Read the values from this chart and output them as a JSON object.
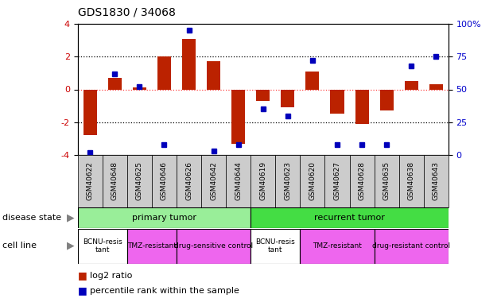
{
  "title": "GDS1830 / 34068",
  "samples": [
    "GSM40622",
    "GSM40648",
    "GSM40625",
    "GSM40646",
    "GSM40626",
    "GSM40642",
    "GSM40644",
    "GSM40619",
    "GSM40623",
    "GSM40620",
    "GSM40627",
    "GSM40628",
    "GSM40635",
    "GSM40638",
    "GSM40643"
  ],
  "log2_ratio": [
    -2.8,
    0.7,
    0.1,
    2.0,
    3.1,
    1.7,
    -3.3,
    -0.7,
    -1.1,
    1.1,
    -1.5,
    -2.1,
    -1.3,
    0.5,
    0.3
  ],
  "percentile_rank": [
    2,
    62,
    52,
    8,
    95,
    3,
    8,
    35,
    30,
    72,
    8,
    8,
    8,
    68,
    75
  ],
  "disease_state": [
    {
      "label": "primary tumor",
      "start": 0,
      "end": 7,
      "color": "#99EE99"
    },
    {
      "label": "recurrent tumor",
      "start": 7,
      "end": 15,
      "color": "#44DD44"
    }
  ],
  "cell_line": [
    {
      "label": "BCNU-resis\ntant",
      "start": 0,
      "end": 2,
      "color": "#FFFFFF"
    },
    {
      "label": "TMZ-resistant",
      "start": 2,
      "end": 4,
      "color": "#EE66EE"
    },
    {
      "label": "drug-sensitive control",
      "start": 4,
      "end": 7,
      "color": "#EE66EE"
    },
    {
      "label": "BCNU-resis\ntant",
      "start": 7,
      "end": 9,
      "color": "#FFFFFF"
    },
    {
      "label": "TMZ-resistant",
      "start": 9,
      "end": 12,
      "color": "#EE66EE"
    },
    {
      "label": "drug-resistant control",
      "start": 12,
      "end": 15,
      "color": "#EE66EE"
    }
  ],
  "bar_color": "#BB2200",
  "dot_color": "#0000BB",
  "ylim": [
    -4,
    4
  ],
  "y2lim": [
    0,
    100
  ],
  "yticks": [
    -4,
    -2,
    0,
    2,
    4
  ],
  "y2ticks": [
    0,
    25,
    50,
    75,
    100
  ],
  "ytick_color": "#CC0000",
  "y2tick_color": "#0000CC",
  "grid_dotted_color": "#000000",
  "zero_line_color": "#FF4444",
  "sample_bg_color": "#CCCCCC",
  "title_fontsize": 10,
  "axis_fontsize": 8,
  "label_fontsize": 8,
  "sample_fontsize": 6.5
}
